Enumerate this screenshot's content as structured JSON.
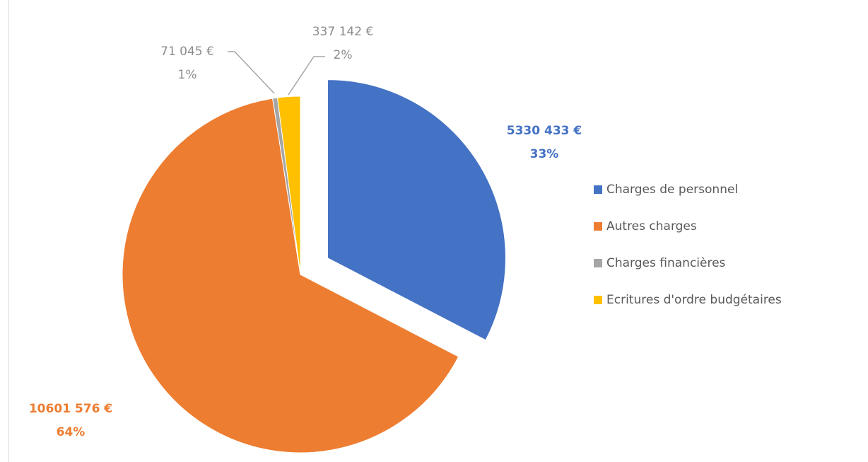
{
  "chart_data": {
    "type": "pie",
    "categories": [
      "Charges de personnel",
      "Autres charges",
      "Charges financières",
      "Ecritures d'ordre budgétaires"
    ],
    "values": [
      5330433,
      10601576,
      71045,
      337142
    ],
    "value_labels": [
      "5330 433 €",
      "10601 576 €",
      "71 045 €",
      "337 142 €"
    ],
    "percent_labels": [
      "33%",
      "64%",
      "1%",
      "2%"
    ],
    "colors": [
      "#4472c4",
      "#ed7d31",
      "#a5a5a5",
      "#ffc000"
    ],
    "label_colors": [
      "#4472c4",
      "#ed7d31",
      "#8c8c8c",
      "#8c8c8c"
    ],
    "exploded": [
      true,
      false,
      false,
      false
    ],
    "legend": "right"
  }
}
